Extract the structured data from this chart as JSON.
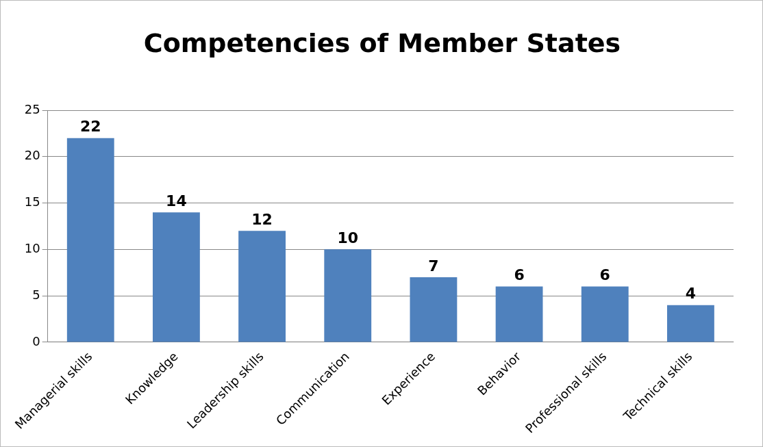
{
  "chart_data": {
    "type": "bar",
    "title": "Competencies of Member States",
    "categories": [
      "Managerial skills",
      "Knowledge",
      "Leadership skills",
      "Communication",
      "Experience",
      "Behavior",
      "Professional skills",
      "Technical skills"
    ],
    "values": [
      22,
      14,
      12,
      10,
      7,
      6,
      6,
      4
    ],
    "color": "#4f81bd",
    "ylim": [
      0,
      25
    ],
    "yticks": [
      0,
      5,
      10,
      15,
      20,
      25
    ],
    "grid": "y",
    "data_labels": true
  }
}
